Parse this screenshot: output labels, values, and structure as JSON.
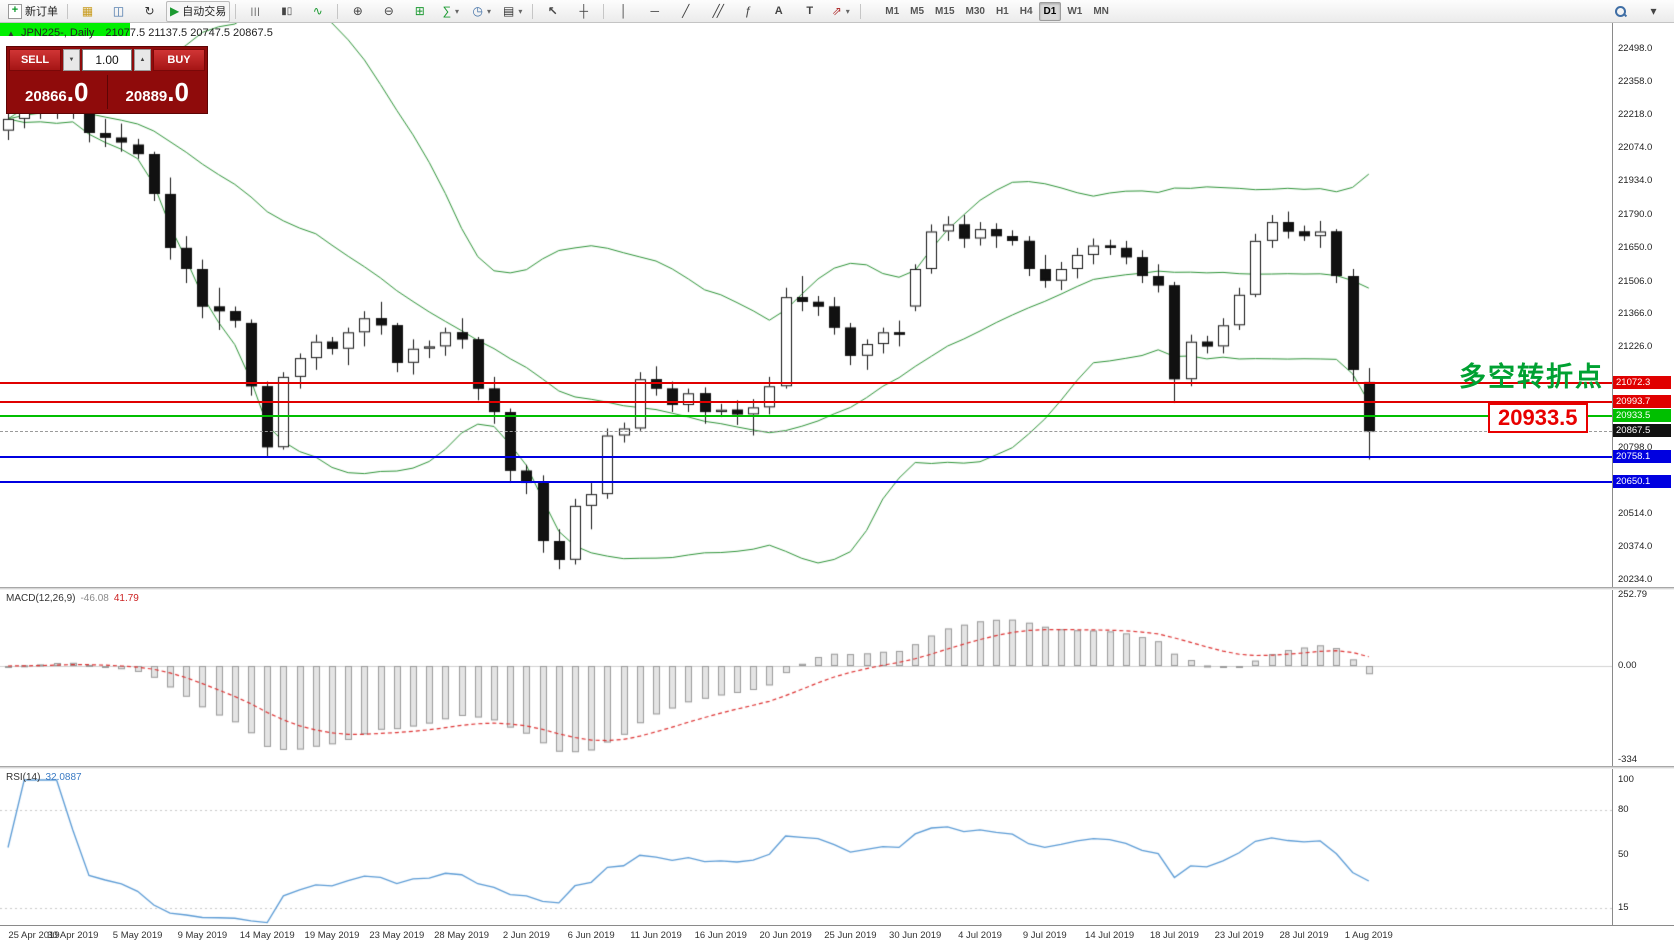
{
  "toolbar": {
    "new_order": "新订单",
    "autotrade": "自动交易",
    "timeframes": [
      "M1",
      "M5",
      "M15",
      "M30",
      "H1",
      "H4",
      "D1",
      "W1",
      "MN"
    ],
    "active_timeframe": "D1"
  },
  "icons": {
    "panel_toggle": "▲",
    "plus": "+",
    "market_watch": "▦",
    "data_window": "◫",
    "refresh": "↻",
    "play": "▶",
    "bars": "|||",
    "candles": "▮▯",
    "line": "∿",
    "zoom_in": "⊕",
    "zoom_out": "⊖",
    "grid": "⊞",
    "indicators": "∑",
    "periods": "◷",
    "templates": "▤",
    "cursor": "↖",
    "crosshair": "┼",
    "vline": "│",
    "hline": "─",
    "trendline": "╱",
    "channel": "╱╱",
    "fibonacci": "ƒ",
    "text": "A",
    "text_label": "T",
    "arrows": "⇗",
    "chevron_down": "▾",
    "stepper_up": "▲",
    "stepper_down": "▼"
  },
  "window": {
    "symbol_title": "JPN225-, Daily",
    "ohlc": "21077.5 21137.5 20747.5 20867.5"
  },
  "trade_panel": {
    "sell_label": "SELL",
    "buy_label": "BUY",
    "volume": "1.00",
    "sell_price": "20866",
    "sell_price_big": ".0",
    "buy_price": "20889",
    "buy_price_big": ".0"
  },
  "annotations": {
    "turning_point": "多空转折点",
    "price_callout": "20933.5"
  },
  "chart_data": {
    "type": "candlestick",
    "symbol": "JPN225",
    "period": "Daily",
    "y_ticks": [
      "22498.0",
      "22358.0",
      "22218.0",
      "22074.0",
      "21934.0",
      "21790.0",
      "21650.0",
      "21506.0",
      "21366.0",
      "21226.0",
      "20798.0",
      "20514.0",
      "20374.0",
      "20234.0"
    ],
    "price_range": [
      20204,
      22609
    ],
    "current_price": {
      "price": 20867.5,
      "label": "20867.5",
      "label_bg": "#111111"
    },
    "hlines": [
      {
        "price": 21072.3,
        "label": "21072.3",
        "color": "#e00000"
      },
      {
        "price": 20993.7,
        "label": "20993.7",
        "color": "#e00000"
      },
      {
        "price": 20933.5,
        "label": "20933.5",
        "color": "#00bf00"
      },
      {
        "price": 20758.1,
        "label": "20758.1",
        "color": "#0000e0"
      },
      {
        "price": 20650.1,
        "label": "20650.1",
        "color": "#0000e0"
      }
    ],
    "highlight": {
      "price": 20933.5,
      "bar_start": 80,
      "bar_end": 88,
      "color": "#00ef00",
      "thickness": 13
    },
    "bollinger": {
      "period": 20,
      "deviation": 2,
      "color": "#2a9134"
    },
    "x_labels": [
      {
        "i": 0,
        "t": "25 Apr 2019"
      },
      {
        "i": 4,
        "t": "30 Apr 2019"
      },
      {
        "i": 8,
        "t": "5 May 2019"
      },
      {
        "i": 12,
        "t": "9 May 2019"
      },
      {
        "i": 16,
        "t": "14 May 2019"
      },
      {
        "i": 20,
        "t": "19 May 2019"
      },
      {
        "i": 24,
        "t": "23 May 2019"
      },
      {
        "i": 28,
        "t": "28 May 2019"
      },
      {
        "i": 32,
        "t": "2 Jun 2019"
      },
      {
        "i": 36,
        "t": "6 Jun 2019"
      },
      {
        "i": 40,
        "t": "11 Jun 2019"
      },
      {
        "i": 44,
        "t": "16 Jun 2019"
      },
      {
        "i": 48,
        "t": "20 Jun 2019"
      },
      {
        "i": 52,
        "t": "25 Jun 2019"
      },
      {
        "i": 56,
        "t": "30 Jun 2019"
      },
      {
        "i": 60,
        "t": "4 Jul 2019"
      },
      {
        "i": 64,
        "t": "9 Jul 2019"
      },
      {
        "i": 68,
        "t": "14 Jul 2019"
      },
      {
        "i": 72,
        "t": "18 Jul 2019"
      },
      {
        "i": 76,
        "t": "23 Jul 2019"
      },
      {
        "i": 80,
        "t": "28 Jul 2019"
      },
      {
        "i": 84,
        "t": "1 Aug 2019"
      }
    ],
    "ohlc": [
      [
        22150,
        22230,
        22110,
        22200
      ],
      [
        22200,
        22265,
        22160,
        22230
      ],
      [
        22230,
        22260,
        22200,
        22245
      ],
      [
        22245,
        22300,
        22200,
        22280
      ],
      [
        22280,
        22320,
        22200,
        22240
      ],
      [
        22240,
        22265,
        22100,
        22140
      ],
      [
        22140,
        22200,
        22080,
        22120
      ],
      [
        22120,
        22180,
        22060,
        22100
      ],
      [
        22090,
        22115,
        22030,
        22050
      ],
      [
        22050,
        22060,
        21850,
        21880
      ],
      [
        21880,
        21950,
        21600,
        21650
      ],
      [
        21650,
        21700,
        21500,
        21560
      ],
      [
        21560,
        21600,
        21350,
        21400
      ],
      [
        21400,
        21480,
        21300,
        21380
      ],
      [
        21380,
        21400,
        21310,
        21340
      ],
      [
        21330,
        21345,
        21020,
        21060
      ],
      [
        21060,
        21080,
        20760,
        20800
      ],
      [
        20800,
        21120,
        20790,
        21100
      ],
      [
        21100,
        21200,
        21050,
        21180
      ],
      [
        21180,
        21280,
        21130,
        21250
      ],
      [
        21250,
        21270,
        21195,
        21220
      ],
      [
        21220,
        21310,
        21150,
        21290
      ],
      [
        21290,
        21380,
        21230,
        21350
      ],
      [
        21350,
        21420,
        21280,
        21320
      ],
      [
        21320,
        21330,
        21120,
        21160
      ],
      [
        21160,
        21260,
        21110,
        21220
      ],
      [
        21220,
        21255,
        21180,
        21230
      ],
      [
        21230,
        21310,
        21190,
        21290
      ],
      [
        21290,
        21350,
        21220,
        21260
      ],
      [
        21260,
        21270,
        21000,
        21050
      ],
      [
        21050,
        21100,
        20900,
        20950
      ],
      [
        20950,
        20965,
        20650,
        20700
      ],
      [
        20700,
        20725,
        20600,
        20650
      ],
      [
        20650,
        20680,
        20350,
        20400
      ],
      [
        20400,
        20450,
        20280,
        20320
      ],
      [
        20320,
        20580,
        20300,
        20550
      ],
      [
        20550,
        20650,
        20450,
        20600
      ],
      [
        20600,
        20880,
        20580,
        20850
      ],
      [
        20850,
        20905,
        20820,
        20880
      ],
      [
        20880,
        21120,
        20870,
        21090
      ],
      [
        21090,
        21145,
        21020,
        21050
      ],
      [
        21050,
        21080,
        20950,
        20980
      ],
      [
        20980,
        21050,
        20950,
        21030
      ],
      [
        21030,
        21055,
        20900,
        20950
      ],
      [
        20950,
        20985,
        20930,
        20960
      ],
      [
        20960,
        21000,
        20895,
        20940
      ],
      [
        20940,
        21005,
        20850,
        20970
      ],
      [
        20970,
        21100,
        20940,
        21060
      ],
      [
        21060,
        21480,
        21050,
        21440
      ],
      [
        21440,
        21530,
        21380,
        21420
      ],
      [
        21420,
        21445,
        21360,
        21400
      ],
      [
        21400,
        21440,
        21280,
        21310
      ],
      [
        21310,
        21330,
        21150,
        21190
      ],
      [
        21190,
        21260,
        21130,
        21240
      ],
      [
        21240,
        21310,
        21200,
        21290
      ],
      [
        21290,
        21340,
        21230,
        21280
      ],
      [
        21400,
        21580,
        21380,
        21560
      ],
      [
        21560,
        21750,
        21540,
        21720
      ],
      [
        21720,
        21785,
        21680,
        21750
      ],
      [
        21750,
        21790,
        21650,
        21690
      ],
      [
        21690,
        21760,
        21660,
        21730
      ],
      [
        21730,
        21755,
        21650,
        21700
      ],
      [
        21700,
        21725,
        21660,
        21680
      ],
      [
        21680,
        21700,
        21530,
        21560
      ],
      [
        21560,
        21620,
        21480,
        21510
      ],
      [
        21510,
        21590,
        21470,
        21560
      ],
      [
        21560,
        21650,
        21520,
        21620
      ],
      [
        21620,
        21690,
        21580,
        21660
      ],
      [
        21660,
        21685,
        21620,
        21650
      ],
      [
        21650,
        21680,
        21580,
        21610
      ],
      [
        21610,
        21640,
        21500,
        21530
      ],
      [
        21530,
        21580,
        21460,
        21490
      ],
      [
        21490,
        21505,
        20990,
        21090
      ],
      [
        21090,
        21280,
        21060,
        21250
      ],
      [
        21250,
        21275,
        21200,
        21230
      ],
      [
        21230,
        21350,
        21200,
        21320
      ],
      [
        21320,
        21480,
        21300,
        21450
      ],
      [
        21450,
        21710,
        21440,
        21680
      ],
      [
        21680,
        21790,
        21650,
        21760
      ],
      [
        21760,
        21805,
        21690,
        21720
      ],
      [
        21720,
        21745,
        21680,
        21700
      ],
      [
        21700,
        21765,
        21650,
        21720
      ],
      [
        21720,
        21730,
        21500,
        21530
      ],
      [
        21530,
        21560,
        21080,
        21130
      ],
      [
        21077.5,
        21137.5,
        20747.5,
        20867.5
      ]
    ],
    "indicators": {
      "macd": {
        "name": "MACD(12,26,9)",
        "value": "-46.08",
        "signal": "41.79",
        "fast": 12,
        "slow": 26,
        "signal_period": 9,
        "scale": [
          {
            "v": 252.79,
            "t": "252.79"
          },
          {
            "v": 0,
            "t": "0.00"
          },
          {
            "v": -334,
            "t": "-334"
          }
        ],
        "histogram_color": "#e4e4e4",
        "signal_color": "#dd3333"
      },
      "rsi": {
        "name": "RSI(14)",
        "value": "32.0887",
        "period": 14,
        "scale": [
          {
            "v": 100,
            "t": "100"
          },
          {
            "v": 80,
            "t": "80"
          },
          {
            "v": 50,
            "t": "50"
          },
          {
            "v": 15,
            "t": "15"
          }
        ],
        "levels": [
          80,
          15
        ],
        "line_color": "#5b9bd5"
      }
    }
  }
}
